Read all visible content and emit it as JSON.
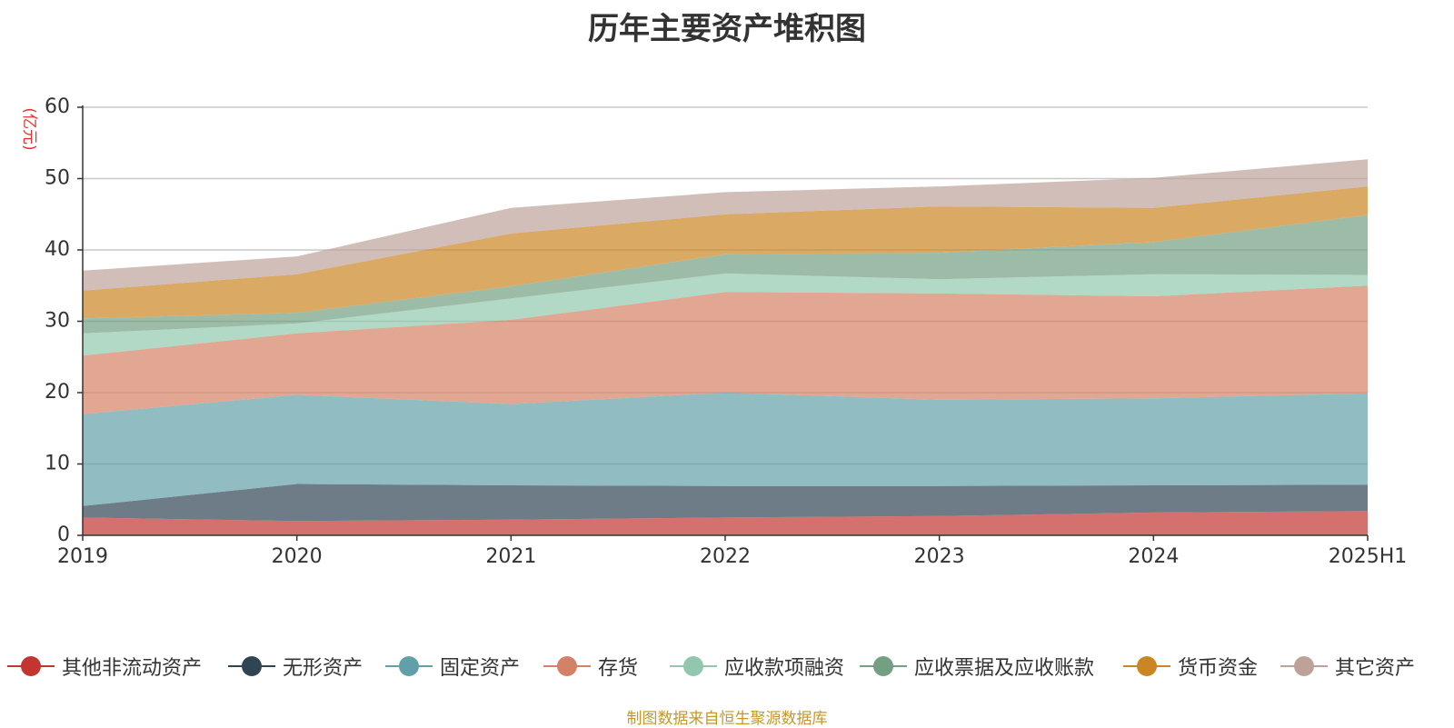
{
  "chart_data": {
    "type": "area",
    "stacked": true,
    "title": "历年主要资产堆积图",
    "unit_label": "(亿元)",
    "x": [
      "2019",
      "2020",
      "2021",
      "2022",
      "2023",
      "2024",
      "2025H1"
    ],
    "ylim": [
      0,
      60
    ],
    "yticks": [
      0,
      10,
      20,
      30,
      40,
      50,
      60
    ],
    "grid": true,
    "legend_position": "bottom",
    "series": [
      {
        "name": "其他非流动资产",
        "color": "#c23531",
        "values": [
          2.5,
          2.0,
          2.2,
          2.5,
          2.7,
          3.2,
          3.4
        ]
      },
      {
        "name": "无形资产",
        "color": "#2f4554",
        "values": [
          1.6,
          5.2,
          4.8,
          4.4,
          4.2,
          3.8,
          3.7
        ]
      },
      {
        "name": "固定资产",
        "color": "#61a0a8",
        "values": [
          12.9,
          12.5,
          11.4,
          13.1,
          12.1,
          12.2,
          12.8
        ]
      },
      {
        "name": "存货",
        "color": "#d48265",
        "values": [
          8.2,
          8.6,
          11.8,
          14.1,
          14.9,
          14.3,
          15.1
        ]
      },
      {
        "name": "应收款项融资",
        "color": "#91c7ae",
        "values": [
          3.1,
          1.4,
          3.0,
          2.6,
          2.0,
          3.1,
          1.5
        ]
      },
      {
        "name": "应收票据及应收账款",
        "color": "#749f83",
        "values": [
          2.1,
          1.5,
          1.7,
          2.7,
          3.7,
          4.5,
          8.4
        ]
      },
      {
        "name": "货币资金",
        "color": "#ca8622",
        "values": [
          3.9,
          5.4,
          7.4,
          5.6,
          6.5,
          4.8,
          4.0
        ]
      },
      {
        "name": "其它资产",
        "color": "#bda29a",
        "values": [
          2.8,
          2.5,
          3.6,
          3.1,
          2.8,
          4.2,
          3.8
        ]
      }
    ]
  },
  "source_note": "制图数据来自恒生聚源数据库"
}
